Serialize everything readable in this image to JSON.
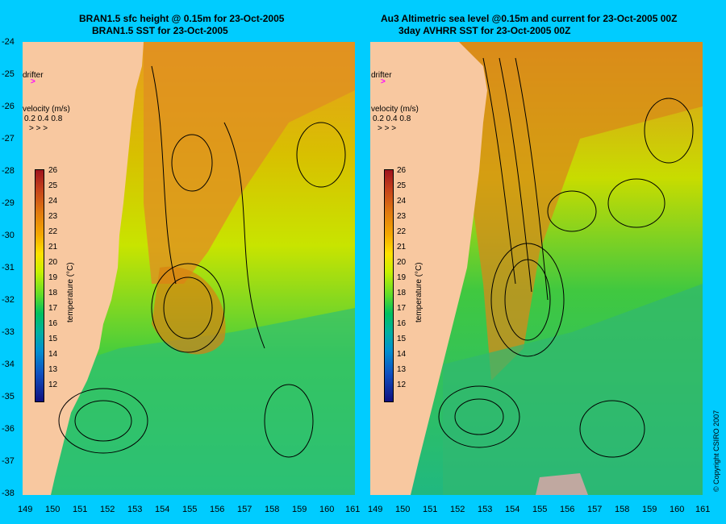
{
  "left_panel": {
    "title_line1": "BRAN1.5 sfc height @ 0.15m for 23-Oct-2005",
    "title_line2": "BRAN1.5 SST for 23-Oct-2005"
  },
  "right_panel": {
    "title_line1": "Au3 Altimetric sea level  @0.15m and current for 23-Oct-2005 00Z",
    "title_line2": "3day AVHRR SST for 23-Oct-2005 00Z"
  },
  "y_ticks": [
    "-24",
    "-25",
    "-26",
    "-27",
    "-28",
    "-29",
    "-30",
    "-31",
    "-32",
    "-33",
    "-34",
    "-35",
    "-36",
    "-37",
    "-38"
  ],
  "x_ticks": [
    "149",
    "150",
    "151",
    "152",
    "153",
    "154",
    "155",
    "156",
    "157",
    "158",
    "159",
    "160",
    "161"
  ],
  "drifter_label": "drifter",
  "velocity_legend": {
    "title": "velocity (m/s)",
    "values": "0.2 0.4 0.8",
    "arrows": "> > >"
  },
  "colorbar": {
    "label": "temperature (°C)",
    "ticks": [
      "26",
      "25",
      "24",
      "23",
      "22",
      "21",
      "20",
      "19",
      "18",
      "17",
      "16",
      "15",
      "14",
      "13",
      "12"
    ]
  },
  "copyright": "© Copyright CSIRO 2007",
  "colors": {
    "background": "#00ccff",
    "land": "#f8c8a0",
    "warm": "#e08a10",
    "mid": "#b8e000",
    "cool": "#00b070",
    "drifter": "#ff00ff"
  }
}
